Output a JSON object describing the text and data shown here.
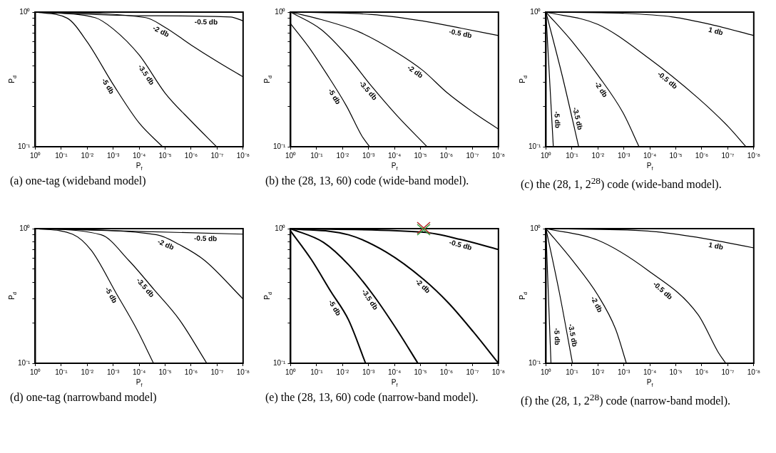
{
  "chart_data": [
    {
      "type": "line",
      "title": "(a) one-tag (wideband model)",
      "xlabel": "P$_{f}$",
      "ylabel": "P$_{d}$",
      "log": "xy",
      "marker": "none",
      "xlim": [
        1,
        1e-08
      ],
      "xticks": [
        {
          "value": 1,
          "label": "10⁰"
        },
        {
          "value": 0.1,
          "label": "10⁻¹"
        },
        {
          "value": 0.01,
          "label": "10⁻²"
        },
        {
          "value": 0.001,
          "label": "10⁻³"
        },
        {
          "value": 0.0001,
          "label": "10⁻⁴"
        },
        {
          "value": 1e-05,
          "label": "10⁻⁵"
        },
        {
          "value": 1e-06,
          "label": "10⁻⁶"
        },
        {
          "value": 1e-07,
          "label": "10⁻⁷"
        },
        {
          "value": 1e-08,
          "label": "10⁻⁸"
        }
      ],
      "ylim": [
        0.1,
        1
      ],
      "yticks": [
        {
          "value": 0.1,
          "label": "10⁻¹"
        },
        {
          "value": 0.2,
          "label": null
        },
        {
          "value": 0.3,
          "label": null
        },
        {
          "value": 0.4,
          "label": null
        },
        {
          "value": 0.5,
          "label": null
        },
        {
          "value": 0.6,
          "label": null
        },
        {
          "value": 0.7,
          "label": null
        },
        {
          "value": 0.8,
          "label": null
        },
        {
          "value": 0.9,
          "label": null
        },
        {
          "value": 1,
          "label": "10⁰"
        }
      ],
      "series": [
        {
          "name": "-0.5 db",
          "color": "#000000",
          "x": [
            1,
            0.0001,
            3e-08,
            1e-08
          ],
          "values": [
            1,
            0.94,
            0.92,
            0.86
          ]
        },
        {
          "name": "-2 db",
          "color": "#000000",
          "x": [
            1,
            5.6e-05,
            1e-05,
            1e-06,
            1e-07,
            1e-08
          ],
          "values": [
            1,
            0.91,
            0.77,
            0.57,
            0.43,
            0.33
          ]
        },
        {
          "name": "-3.5 db",
          "color": "#000000",
          "x": [
            1,
            0.005,
            0.001,
            0.0001,
            1e-05,
            1e-06,
            1.05e-07
          ],
          "values": [
            1,
            0.91,
            0.75,
            0.48,
            0.25,
            0.155,
            0.1
          ]
        },
        {
          "name": "-5 db",
          "color": "#000000",
          "x": [
            1,
            0.058,
            0.01,
            0.001,
            0.0001,
            1.26e-05
          ],
          "values": [
            1,
            0.9,
            0.6,
            0.29,
            0.15,
            0.1
          ]
        }
      ]
    },
    {
      "type": "line",
      "title": "(b) the (28, 13, 60) code (wide-band model).",
      "xlabel": "P$_{f}$",
      "ylabel": "P$_{d}$",
      "log": "xy",
      "marker": "none",
      "xlim": [
        1,
        1e-08
      ],
      "xticks": [
        {
          "value": 1,
          "label": "10⁰"
        },
        {
          "value": 0.1,
          "label": "10⁻¹"
        },
        {
          "value": 0.01,
          "label": "10⁻²"
        },
        {
          "value": 0.001,
          "label": "10⁻³"
        },
        {
          "value": 0.0001,
          "label": "10⁻⁴"
        },
        {
          "value": 1e-05,
          "label": "10⁻⁵"
        },
        {
          "value": 1e-06,
          "label": "10⁻⁶"
        },
        {
          "value": 1e-07,
          "label": "10⁻⁷"
        },
        {
          "value": 1e-08,
          "label": "10⁻⁸"
        }
      ],
      "ylim": [
        0.1,
        1
      ],
      "yticks": [
        {
          "value": 0.1,
          "label": "10⁻¹"
        },
        {
          "value": 0.2,
          "label": null
        },
        {
          "value": 0.3,
          "label": null
        },
        {
          "value": 0.4,
          "label": null
        },
        {
          "value": 0.5,
          "label": null
        },
        {
          "value": 0.6,
          "label": null
        },
        {
          "value": 0.7,
          "label": null
        },
        {
          "value": 0.8,
          "label": null
        },
        {
          "value": 0.9,
          "label": null
        },
        {
          "value": 1,
          "label": "10⁰"
        }
      ],
      "series": [
        {
          "name": "-0.5 db",
          "color": "#000000",
          "x": [
            1,
            0.00075,
            8.3e-06,
            2.8e-07,
            1e-08
          ],
          "values": [
            1,
            0.96,
            0.86,
            0.76,
            0.67
          ]
        },
        {
          "name": "-2 db",
          "color": "#000000",
          "x": [
            1,
            0.065,
            0.0022,
            8e-05,
            8.3e-06,
            9e-07,
            9.3e-08,
            1e-08
          ],
          "values": [
            1,
            0.88,
            0.71,
            0.5,
            0.37,
            0.25,
            0.18,
            0.135
          ]
        },
        {
          "name": "-3.5 db",
          "color": "#000000",
          "x": [
            1,
            0.065,
            0.007,
            0.00075,
            8e-05,
            5.6e-06
          ],
          "values": [
            1,
            0.74,
            0.48,
            0.28,
            0.17,
            0.1
          ]
        },
        {
          "name": "-5 db",
          "color": "#000000",
          "x": [
            1,
            0.2,
            0.042,
            0.007,
            0.0018,
            0.0009
          ],
          "values": [
            0.82,
            0.55,
            0.35,
            0.2,
            0.12,
            0.1
          ]
        }
      ]
    },
    {
      "type": "line",
      "title": "(c) the (28, 1, 2$^{28}$) code (wide-band model).",
      "xlabel": "P$_{f}$",
      "ylabel": "P$_{d}$",
      "log": "xy",
      "marker": "none",
      "xlim": [
        1,
        1e-08
      ],
      "xticks": [
        {
          "value": 1,
          "label": "10⁰"
        },
        {
          "value": 0.1,
          "label": "10⁻¹"
        },
        {
          "value": 0.01,
          "label": "10⁻²"
        },
        {
          "value": 0.001,
          "label": "10⁻³"
        },
        {
          "value": 0.0001,
          "label": "10⁻⁴"
        },
        {
          "value": 1e-05,
          "label": "10⁻⁵"
        },
        {
          "value": 1e-06,
          "label": "10⁻⁶"
        },
        {
          "value": 1e-07,
          "label": "10⁻⁷"
        },
        {
          "value": 1e-08,
          "label": "10⁻⁸"
        }
      ],
      "ylim": [
        0.1,
        1
      ],
      "yticks": [
        {
          "value": 0.1,
          "label": "10⁻¹"
        },
        {
          "value": 0.2,
          "label": null
        },
        {
          "value": 0.3,
          "label": null
        },
        {
          "value": 0.4,
          "label": null
        },
        {
          "value": 0.5,
          "label": null
        },
        {
          "value": 0.6,
          "label": null
        },
        {
          "value": 0.7,
          "label": null
        },
        {
          "value": 0.8,
          "label": null
        },
        {
          "value": 0.9,
          "label": null
        },
        {
          "value": 1,
          "label": "10⁰"
        }
      ],
      "series": [
        {
          "name": "1 db",
          "color": "#000000",
          "x": [
            1,
            0.0011,
            1.3e-05,
            3.5e-07,
            1e-08
          ],
          "values": [
            1,
            0.98,
            0.92,
            0.8,
            0.67
          ]
        },
        {
          "name": "-0.5 db",
          "color": "#000000",
          "x": [
            1,
            0.01,
            0.00012,
            1.4e-06,
            9.3e-08,
            2e-08
          ],
          "values": [
            1,
            0.81,
            0.46,
            0.23,
            0.14,
            0.1
          ]
        },
        {
          "name": "-2 db",
          "color": "#000000",
          "x": [
            1,
            0.095,
            0.01,
            0.0011,
            0.00026
          ],
          "values": [
            1,
            0.6,
            0.34,
            0.18,
            0.1
          ]
        },
        {
          "name": "-3.5 db",
          "color": "#000000",
          "x": [
            1,
            0.23,
            0.055
          ],
          "values": [
            1,
            0.33,
            0.1
          ]
        },
        {
          "name": "-5 db",
          "color": "#000000",
          "x": [
            1,
            0.52
          ],
          "values": [
            0.98,
            0.1
          ]
        }
      ]
    },
    {
      "type": "line",
      "title": "(d) one-tag (narrowband model)",
      "xlabel": "P$_{f}$",
      "ylabel": "P$_{d}$",
      "log": "xy",
      "marker": "none",
      "xlim": [
        1,
        1e-08
      ],
      "xticks": [
        {
          "value": 1,
          "label": "10⁰"
        },
        {
          "value": 0.1,
          "label": "10⁻¹"
        },
        {
          "value": 0.01,
          "label": "10⁻²"
        },
        {
          "value": 0.001,
          "label": "10⁻³"
        },
        {
          "value": 0.0001,
          "label": "10⁻⁴"
        },
        {
          "value": 1e-05,
          "label": "10⁻⁵"
        },
        {
          "value": 1e-06,
          "label": "10⁻⁶"
        },
        {
          "value": 1e-07,
          "label": "10⁻⁷"
        },
        {
          "value": 1e-08,
          "label": "10⁻⁸"
        }
      ],
      "ylim": [
        0.1,
        1
      ],
      "yticks": [
        {
          "value": 0.1,
          "label": "10⁻¹"
        },
        {
          "value": 0.2,
          "label": null
        },
        {
          "value": 0.3,
          "label": null
        },
        {
          "value": 0.4,
          "label": null
        },
        {
          "value": 0.5,
          "label": null
        },
        {
          "value": 0.6,
          "label": null
        },
        {
          "value": 0.7,
          "label": null
        },
        {
          "value": 0.8,
          "label": null
        },
        {
          "value": 0.9,
          "label": null
        },
        {
          "value": 1,
          "label": "10⁰"
        }
      ],
      "series": [
        {
          "name": "-0.5 db",
          "color": "#000000",
          "x": [
            1,
            1e-08
          ],
          "values": [
            1,
            0.91
          ]
        },
        {
          "name": "-2 db",
          "color": "#000000",
          "x": [
            1,
            2.1e-05,
            2.8e-06,
            3e-07,
            1e-08
          ],
          "values": [
            1,
            0.9,
            0.76,
            0.58,
            0.3
          ]
        },
        {
          "name": "-3.5 db",
          "color": "#000000",
          "x": [
            1,
            0.0029,
            0.00025,
            2.6e-05,
            2.8e-06,
            2.5e-07
          ],
          "values": [
            1,
            0.9,
            0.58,
            0.35,
            0.21,
            0.1
          ]
        },
        {
          "name": "-5 db",
          "color": "#000000",
          "x": [
            1,
            0.037,
            0.007,
            0.00076,
            0.000126,
            2.8e-05
          ],
          "values": [
            1,
            0.91,
            0.69,
            0.33,
            0.18,
            0.1
          ]
        }
      ]
    },
    {
      "type": "line",
      "title": "(e) the (28, 13, 60) code (narrow-band model).",
      "xlabel": "P$_{f}$",
      "ylabel": "P$_{d}$",
      "log": "xy",
      "marker": "none",
      "xlim": [
        1,
        1e-08
      ],
      "xticks": [
        {
          "value": 1,
          "label": "10⁰"
        },
        {
          "value": 0.1,
          "label": "10⁻¹"
        },
        {
          "value": 0.01,
          "label": "10⁻²"
        },
        {
          "value": 0.001,
          "label": "10⁻³"
        },
        {
          "value": 0.0001,
          "label": "10⁻⁴"
        },
        {
          "value": 1e-05,
          "label": "10⁻⁵"
        },
        {
          "value": 1e-06,
          "label": "10⁻⁶"
        },
        {
          "value": 1e-07,
          "label": "10⁻⁷"
        },
        {
          "value": 1e-08,
          "label": "10⁻⁸"
        }
      ],
      "ylim": [
        0.1,
        1
      ],
      "yticks": [
        {
          "value": 0.1,
          "label": "10⁻¹"
        },
        {
          "value": 0.2,
          "label": null
        },
        {
          "value": 0.3,
          "label": null
        },
        {
          "value": 0.4,
          "label": null
        },
        {
          "value": 0.5,
          "label": null
        },
        {
          "value": 0.6,
          "label": null
        },
        {
          "value": 0.7,
          "label": null
        },
        {
          "value": 0.8,
          "label": null
        },
        {
          "value": 0.9,
          "label": null
        },
        {
          "value": 1,
          "label": "10⁰"
        }
      ],
      "series": [
        {
          "name": "-0.5 db",
          "color": "#000000",
          "x": [
            1,
            7.6e-06,
            2.8e-07,
            1e-08
          ],
          "values": [
            1,
            0.94,
            0.83,
            0.7
          ]
        },
        {
          "name": "-2 db",
          "color": "#000000",
          "x": [
            1,
            0.0059,
            0.00021,
            7.6e-06,
            8.3e-07,
            9e-08,
            1e-08
          ],
          "values": [
            1,
            0.9,
            0.67,
            0.42,
            0.28,
            0.17,
            0.1
          ]
        },
        {
          "name": "-3.5 db",
          "color": "#000000",
          "x": [
            1,
            0.054,
            0.0059,
            0.00065,
            7e-05,
            1.26e-05
          ],
          "values": [
            1,
            0.79,
            0.54,
            0.32,
            0.17,
            0.1
          ]
        },
        {
          "name": "-5 db",
          "color": "#000000",
          "x": [
            1,
            0.16,
            0.028,
            0.0059,
            0.0013
          ],
          "values": [
            0.96,
            0.59,
            0.34,
            0.21,
            0.1
          ]
        }
      ]
    },
    {
      "type": "line",
      "title": "(f) the (28, 1, 2$^{28}$) code (narrow-band model).",
      "xlabel": "P$_{f}$",
      "ylabel": "P$_{d}$",
      "log": "xy",
      "marker": "none",
      "xlim": [
        1,
        1e-08
      ],
      "xticks": [
        {
          "value": 1,
          "label": "10⁰"
        },
        {
          "value": 0.1,
          "label": "10⁻¹"
        },
        {
          "value": 0.01,
          "label": "10⁻²"
        },
        {
          "value": 0.001,
          "label": "10⁻³"
        },
        {
          "value": 0.0001,
          "label": "10⁻⁴"
        },
        {
          "value": 1e-05,
          "label": "10⁻⁵"
        },
        {
          "value": 1e-06,
          "label": "10⁻⁶"
        },
        {
          "value": 1e-07,
          "label": "10⁻⁷"
        },
        {
          "value": 1e-08,
          "label": "10⁻⁸"
        }
      ],
      "ylim": [
        0.1,
        1
      ],
      "yticks": [
        {
          "value": 0.1,
          "label": "10⁻¹"
        },
        {
          "value": 0.2,
          "label": null
        },
        {
          "value": 0.3,
          "label": null
        },
        {
          "value": 0.4,
          "label": null
        },
        {
          "value": 0.5,
          "label": null
        },
        {
          "value": 0.6,
          "label": null
        },
        {
          "value": 0.7,
          "label": null
        },
        {
          "value": 0.8,
          "label": null
        },
        {
          "value": 0.9,
          "label": null
        },
        {
          "value": 1,
          "label": "10⁰"
        }
      ],
      "series": [
        {
          "name": "1 db",
          "color": "#000000",
          "x": [
            1,
            0.00012,
            1.4e-06,
            1.2e-07,
            1e-08
          ],
          "values": [
            1,
            0.96,
            0.86,
            0.79,
            0.72
          ]
        },
        {
          "name": "-0.5 db",
          "color": "#000000",
          "x": [
            1,
            0.01,
            0.00012,
            1.4e-06,
            2.3e-07,
            1.2e-07
          ],
          "values": [
            1,
            0.82,
            0.49,
            0.23,
            0.12,
            0.1
          ]
        },
        {
          "name": "-2 db",
          "color": "#000000",
          "x": [
            1,
            0.095,
            0.01,
            0.0021,
            0.0008
          ],
          "values": [
            1,
            0.58,
            0.32,
            0.18,
            0.1
          ]
        },
        {
          "name": "-3.5 db",
          "color": "#000000",
          "x": [
            1,
            0.3,
            0.095
          ],
          "values": [
            1,
            0.33,
            0.1
          ]
        },
        {
          "name": "-5 db",
          "color": "#000000",
          "x": [
            1,
            0.64
          ],
          "values": [
            0.96,
            0.1
          ]
        }
      ]
    }
  ]
}
